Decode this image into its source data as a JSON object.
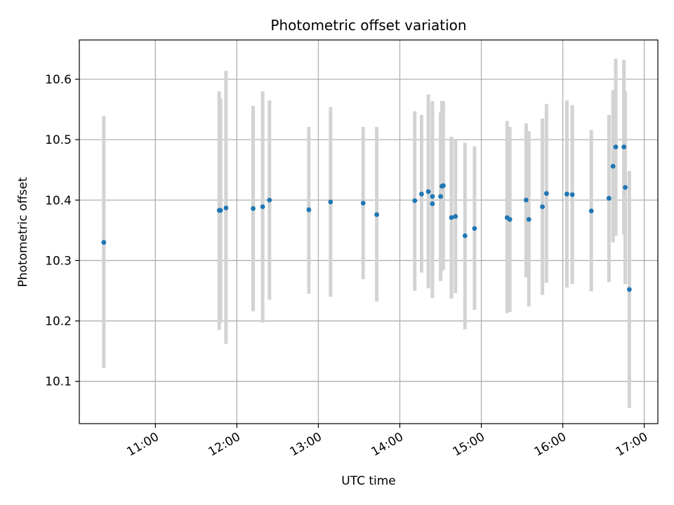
{
  "chart_data": {
    "type": "scatter",
    "title": "Photometric offset variation",
    "xlabel": "UTC time",
    "ylabel": "Photometric offset",
    "grid": true,
    "x_unit": "hours UTC",
    "xlim": [
      "10:04",
      "17:10"
    ],
    "ylim": [
      10.03,
      10.665
    ],
    "xticks": [
      "11:00",
      "12:00",
      "13:00",
      "14:00",
      "15:00",
      "16:00",
      "17:00"
    ],
    "yticks": [
      10.1,
      10.2,
      10.3,
      10.4,
      10.5,
      10.6
    ],
    "marker_color": "#1f77b4",
    "errorbar_color": "#d3d3d3",
    "series": [
      {
        "points": [
          {
            "t": "10:22",
            "y": 10.33,
            "lo": 10.122,
            "hi": 10.539
          },
          {
            "t": "11:47",
            "y": 10.383,
            "lo": 10.185,
            "hi": 10.58
          },
          {
            "t": "11:48",
            "y": 10.383,
            "lo": 10.197,
            "hi": 10.569
          },
          {
            "t": "11:52",
            "y": 10.387,
            "lo": 10.162,
            "hi": 10.614
          },
          {
            "t": "12:12",
            "y": 10.386,
            "lo": 10.216,
            "hi": 10.556
          },
          {
            "t": "12:19",
            "y": 10.389,
            "lo": 10.197,
            "hi": 10.58
          },
          {
            "t": "12:24",
            "y": 10.4,
            "lo": 10.235,
            "hi": 10.565
          },
          {
            "t": "12:53",
            "y": 10.384,
            "lo": 10.245,
            "hi": 10.521
          },
          {
            "t": "13:09",
            "y": 10.397,
            "lo": 10.24,
            "hi": 10.554
          },
          {
            "t": "13:33",
            "y": 10.395,
            "lo": 10.269,
            "hi": 10.521
          },
          {
            "t": "13:43",
            "y": 10.376,
            "lo": 10.232,
            "hi": 10.521
          },
          {
            "t": "14:11",
            "y": 10.399,
            "lo": 10.25,
            "hi": 10.547
          },
          {
            "t": "14:16",
            "y": 10.41,
            "lo": 10.28,
            "hi": 10.541
          },
          {
            "t": "14:21",
            "y": 10.414,
            "lo": 10.254,
            "hi": 10.575
          },
          {
            "t": "14:24",
            "y": 10.406,
            "lo": 10.238,
            "hi": 10.564
          },
          {
            "t": "14:24",
            "y": 10.394,
            "lo": 10.238,
            "hi": 10.55
          },
          {
            "t": "14:30",
            "y": 10.406,
            "lo": 10.266,
            "hi": 10.545
          },
          {
            "t": "14:31",
            "y": 10.423,
            "lo": 10.282,
            "hi": 10.564
          },
          {
            "t": "14:32",
            "y": 10.424,
            "lo": 10.285,
            "hi": 10.564
          },
          {
            "t": "14:38",
            "y": 10.371,
            "lo": 10.237,
            "hi": 10.505
          },
          {
            "t": "14:41",
            "y": 10.373,
            "lo": 10.246,
            "hi": 10.5
          },
          {
            "t": "14:48",
            "y": 10.341,
            "lo": 10.186,
            "hi": 10.495
          },
          {
            "t": "14:55",
            "y": 10.353,
            "lo": 10.218,
            "hi": 10.489
          },
          {
            "t": "15:19",
            "y": 10.371,
            "lo": 10.213,
            "hi": 10.531
          },
          {
            "t": "15:21",
            "y": 10.368,
            "lo": 10.215,
            "hi": 10.521
          },
          {
            "t": "15:33",
            "y": 10.4,
            "lo": 10.272,
            "hi": 10.527
          },
          {
            "t": "15:35",
            "y": 10.368,
            "lo": 10.224,
            "hi": 10.514
          },
          {
            "t": "15:45",
            "y": 10.389,
            "lo": 10.243,
            "hi": 10.535
          },
          {
            "t": "15:48",
            "y": 10.411,
            "lo": 10.263,
            "hi": 10.559
          },
          {
            "t": "16:03",
            "y": 10.41,
            "lo": 10.255,
            "hi": 10.565
          },
          {
            "t": "16:07",
            "y": 10.409,
            "lo": 10.261,
            "hi": 10.557
          },
          {
            "t": "16:21",
            "y": 10.382,
            "lo": 10.249,
            "hi": 10.516
          },
          {
            "t": "16:34",
            "y": 10.403,
            "lo": 10.264,
            "hi": 10.541
          },
          {
            "t": "16:37",
            "y": 10.456,
            "lo": 10.33,
            "hi": 10.582
          },
          {
            "t": "16:39",
            "y": 10.488,
            "lo": 10.341,
            "hi": 10.634
          },
          {
            "t": "16:45",
            "y": 10.488,
            "lo": 10.343,
            "hi": 10.632
          },
          {
            "t": "16:46",
            "y": 10.421,
            "lo": 10.261,
            "hi": 10.58
          },
          {
            "t": "16:49",
            "y": 10.252,
            "lo": 10.056,
            "hi": 10.448
          }
        ]
      }
    ]
  }
}
